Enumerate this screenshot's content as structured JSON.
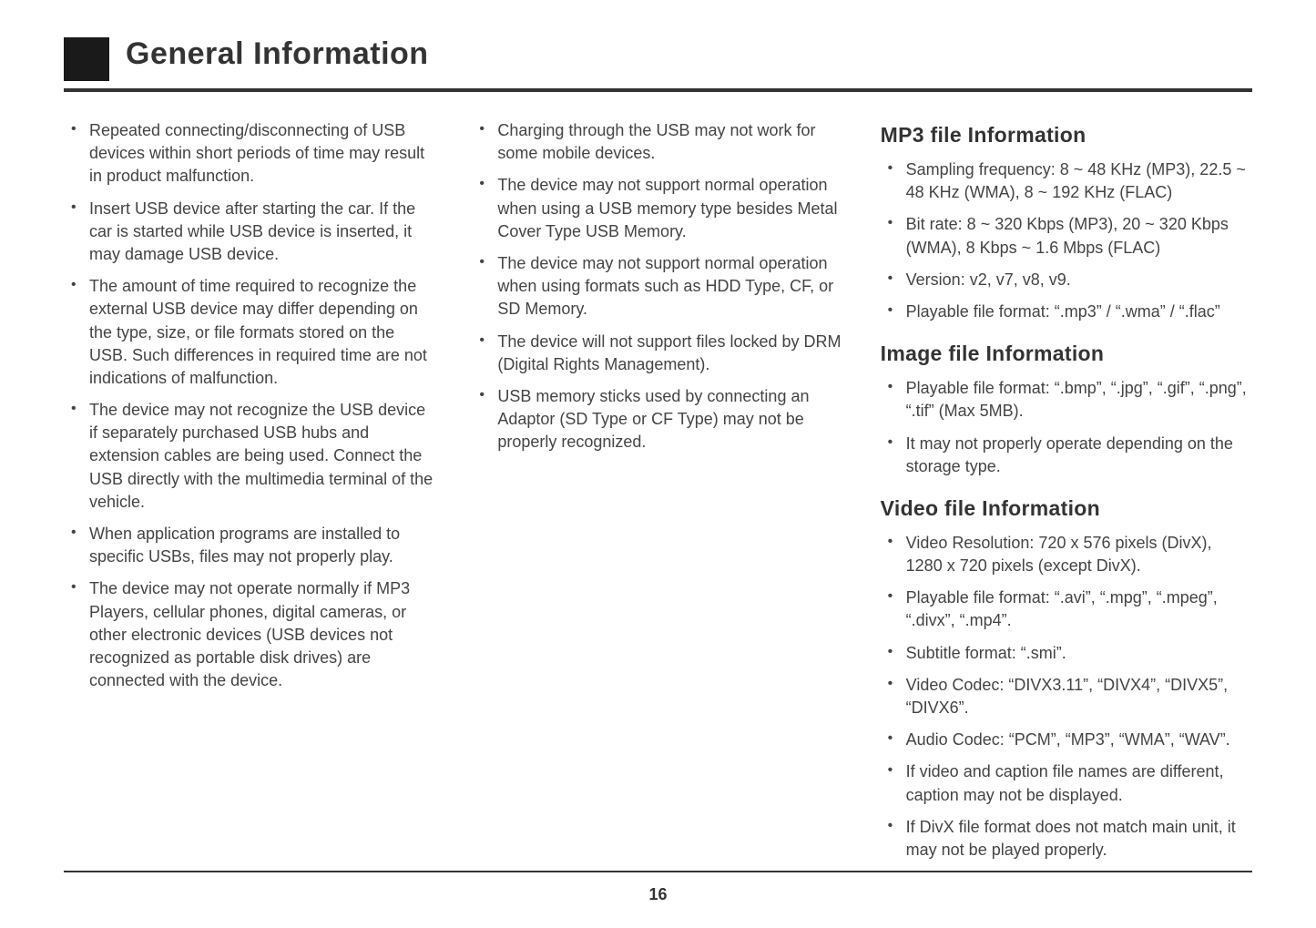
{
  "title": "General Information",
  "page_number": "16",
  "column1": {
    "items": [
      "Repeated connecting/disconnecting of USB devices within short periods of time may result in product malfunction.",
      "Insert USB device after starting the car. If the car is started while USB device is inserted, it may damage USB device.",
      "The amount of time required to recognize the external USB device may differ depending on the type, size, or file formats stored on the USB. Such differences in required time are not indications of malfunction.",
      "The device may not recognize the USB device if separately purchased USB hubs and extension cables are being used. Connect the USB directly with the multimedia terminal of the vehicle.",
      "When application programs are installed to specific USBs, files may not properly play.",
      "The device may not operate normally if MP3 Players, cellular phones, digital cameras, or other electronic devices (USB devices not recognized as portable disk drives) are connected with the device."
    ]
  },
  "column2": {
    "items": [
      "Charging through the USB may not work for some mobile devices.",
      "The device may not support normal operation when using a USB memory type besides Metal Cover Type USB Memory.",
      "The device may not support normal operation when using formats such as HDD Type, CF, or SD Memory.",
      "The device will not support files locked by DRM (Digital Rights Management).",
      "USB memory sticks used by connecting an Adaptor (SD Type or CF Type) may not be properly recognized."
    ]
  },
  "column3": {
    "sections": [
      {
        "heading": "MP3 file Information",
        "items": [
          "Sampling frequency: 8 ~ 48 KHz (MP3), 22.5 ~ 48 KHz (WMA), 8 ~ 192 KHz (FLAC)",
          "Bit rate: 8 ~ 320 Kbps (MP3), 20 ~ 320 Kbps (WMA), 8 Kbps ~ 1.6 Mbps (FLAC)",
          "Version: v2, v7, v8, v9.",
          "Playable file format: “.mp3” / “.wma” / “.flac”"
        ]
      },
      {
        "heading": "Image file Information",
        "items": [
          "Playable file format: “.bmp”, “.jpg”, “.gif”, “.png”, “.tif” (Max 5MB).",
          "It may not properly operate depending on the storage type."
        ]
      },
      {
        "heading": "Video file Information",
        "items": [
          "Video Resolution: 720 x 576 pixels (DivX), 1280 x 720 pixels (except DivX).",
          "Playable file format: “.avi”, “.mpg”, “.mpeg”, “.divx”, “.mp4”.",
          "Subtitle format: “.smi”.",
          "Video Codec: “DIVX3.11”, “DIVX4”, “DIVX5”, “DIVX6”.",
          "Audio Codec: “PCM”, “MP3”, “WMA”, “WAV”.",
          "If video and caption file names are different, caption may not be displayed.",
          "If DivX file format does not match main unit, it may not be played properly."
        ]
      }
    ]
  }
}
